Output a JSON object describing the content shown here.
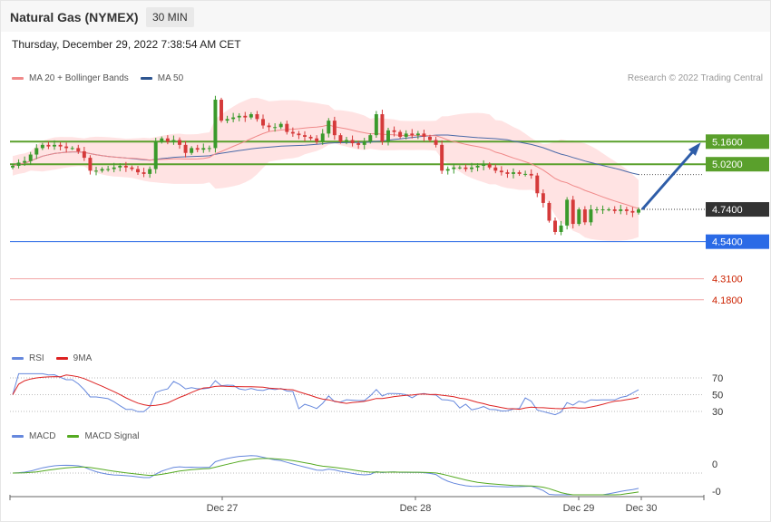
{
  "header": {
    "title": "Natural Gas (NYMEX)",
    "timeframe": "30 MIN"
  },
  "datetime": "Thursday, December 29, 2022 7:38:54 AM CET",
  "copyright": "Research © 2022 Trading Central",
  "colors": {
    "bullish": "#3a9a2b",
    "bearish": "#d53a3a",
    "ma20": "#f08a8a",
    "band_fill": "#ffdede",
    "ma50": "#4b6aa8",
    "resistance": "#5aa02c",
    "support_blue": "#2a6ae6",
    "support_red": "#f2a6a6",
    "last": "#333333",
    "arrow": "#2e5da8",
    "rsi": "#6688dd",
    "rsi_ma": "#dd2222",
    "macd": "#6688dd",
    "macd_signal": "#55aa22"
  },
  "legends": {
    "price": [
      {
        "label": "MA 20 + Bollinger Bands",
        "color": "#f08a8a"
      },
      {
        "label": "MA 50",
        "color": "#2e5590"
      }
    ],
    "rsi": [
      {
        "label": "RSI",
        "color": "#6688dd"
      },
      {
        "label": "9MA",
        "color": "#dd2222"
      }
    ],
    "macd": [
      {
        "label": "MACD",
        "color": "#6688dd"
      },
      {
        "label": "MACD Signal",
        "color": "#55aa22"
      }
    ]
  },
  "chart_data": [
    {
      "type": "candlestick",
      "title": "Natural Gas (NYMEX)",
      "timeframe": "30 MIN",
      "x_ticks": [
        "Dec 27",
        "Dec 28",
        "Dec 29",
        "Dec 30"
      ],
      "ylim": [
        4.1,
        5.42
      ],
      "last_price": 4.74,
      "levels": [
        {
          "label": "5.1600",
          "value": 5.16,
          "role": "resistance"
        },
        {
          "label": "5.0200",
          "value": 5.02,
          "role": "resistance"
        },
        {
          "label": "4.7400",
          "value": 4.74,
          "role": "last"
        },
        {
          "label": "4.5400",
          "value": 4.54,
          "role": "support"
        },
        {
          "label": "4.3100",
          "value": 4.31,
          "role": "support"
        },
        {
          "label": "4.1800",
          "value": 4.18,
          "role": "support"
        }
      ],
      "projection": {
        "from": 4.74,
        "to": 5.16,
        "direction": "up"
      },
      "close": [
        5.01,
        5.03,
        5.04,
        5.08,
        5.12,
        5.14,
        5.13,
        5.14,
        5.13,
        5.12,
        5.12,
        5.1,
        5.06,
        4.98,
        4.98,
        4.99,
        4.99,
        5.0,
        5.01,
        5.0,
        4.99,
        4.97,
        4.96,
        4.99,
        5.16,
        5.18,
        5.16,
        5.17,
        5.14,
        5.09,
        5.12,
        5.11,
        5.12,
        5.12,
        5.42,
        5.29,
        5.3,
        5.31,
        5.32,
        5.31,
        5.33,
        5.3,
        5.26,
        5.25,
        5.25,
        5.27,
        5.22,
        5.21,
        5.2,
        5.19,
        5.18,
        5.16,
        5.21,
        5.29,
        5.2,
        5.16,
        5.17,
        5.15,
        5.14,
        5.16,
        5.2,
        5.33,
        5.16,
        5.23,
        5.22,
        5.19,
        5.21,
        5.2,
        5.21,
        5.19,
        5.17,
        5.14,
        4.98,
        4.99,
        5.0,
        5.0,
        4.99,
        5.0,
        5.01,
        5.02,
        5.0,
        4.98,
        4.97,
        4.96,
        4.97,
        4.96,
        4.96,
        4.95,
        4.84,
        4.78,
        4.67,
        4.6,
        4.64,
        4.8,
        4.65,
        4.74,
        4.66,
        4.74,
        4.74,
        4.74,
        4.74,
        4.73,
        4.74,
        4.73,
        4.72,
        4.74
      ]
    },
    {
      "type": "line",
      "title": "RSI",
      "series": [
        {
          "name": "RSI"
        },
        {
          "name": "9MA"
        }
      ],
      "y_ticks": [
        70,
        50,
        30
      ],
      "ylim": [
        20,
        80
      ]
    },
    {
      "type": "line",
      "title": "MACD",
      "series": [
        {
          "name": "MACD"
        },
        {
          "name": "MACD Signal"
        }
      ],
      "y_ticks": [
        "0",
        "-0"
      ]
    }
  ]
}
